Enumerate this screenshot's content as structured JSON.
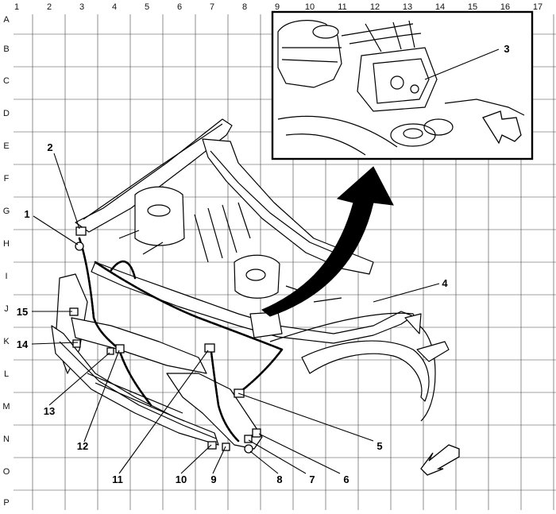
{
  "grid": {
    "columns": [
      "1",
      "2",
      "3",
      "4",
      "5",
      "6",
      "7",
      "8",
      "9",
      "10",
      "11",
      "12",
      "13",
      "14",
      "15",
      "16",
      "17"
    ],
    "rows": [
      "A",
      "B",
      "C",
      "D",
      "E",
      "F",
      "G",
      "H",
      "I",
      "J",
      "K",
      "L",
      "M",
      "N",
      "O",
      "P"
    ]
  },
  "callouts": [
    "1",
    "2",
    "3",
    "4",
    "5",
    "6",
    "7",
    "8",
    "9",
    "10",
    "11",
    "12",
    "13",
    "14",
    "15"
  ],
  "colors": {
    "ink": "#000000",
    "grid": "#333333",
    "background": "#ffffff"
  }
}
